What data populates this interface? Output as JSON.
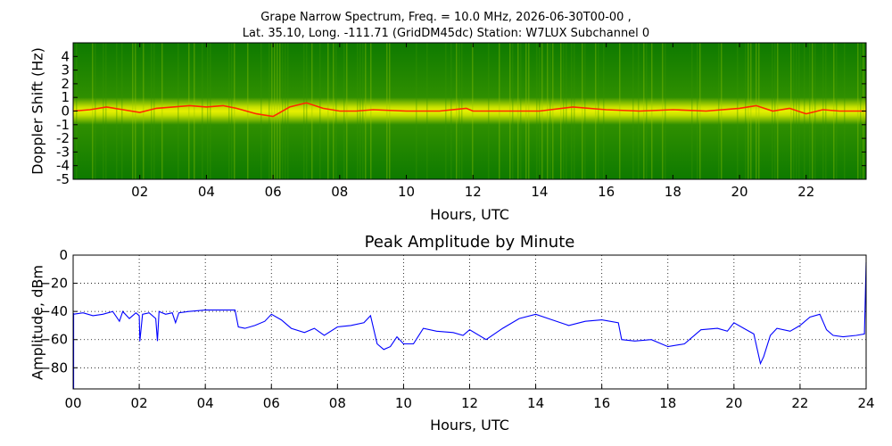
{
  "figure": {
    "title_line1": "Grape Narrow Spectrum, Freq. = 10.0 MHz, 2026-06-30T00-00 ,",
    "title_line2": "Lat.  35.10, Long. -111.71 (GridDM45dc) Station: W7LUX Subchannel 0"
  },
  "colors": {
    "spectrogram_low": "#0e7a00",
    "spectrogram_mid": "#e8f000",
    "spectrogram_peak": "#ff2a00",
    "amplitude_line": "#0000ff",
    "grid": "#000000"
  },
  "chart_data": [
    {
      "type": "heatmap",
      "title": "",
      "xlabel": "Hours, UTC",
      "ylabel": "Doppler Shift (Hz)",
      "xlim": [
        0,
        23.8
      ],
      "ylim": [
        -5,
        5
      ],
      "x_ticks": [
        2,
        4,
        6,
        8,
        10,
        12,
        14,
        16,
        18,
        20,
        22
      ],
      "x_tick_labels": [
        "02",
        "04",
        "06",
        "08",
        "10",
        "12",
        "14",
        "16",
        "18",
        "20",
        "22"
      ],
      "y_ticks": [
        -5,
        -4,
        -3,
        -2,
        -1,
        0,
        1,
        2,
        3,
        4
      ],
      "y_tick_labels": [
        "-5",
        "-4",
        "-3",
        "-2",
        "-1",
        "0",
        "1",
        "2",
        "3",
        "4"
      ],
      "peak_doppler_trace": {
        "x": [
          0,
          0.5,
          1,
          1.5,
          2,
          2.5,
          3,
          3.5,
          4,
          4.5,
          4.9,
          5.5,
          6,
          6.5,
          7,
          7.5,
          8,
          8.5,
          9,
          10,
          11,
          11.8,
          12,
          13,
          14,
          15,
          16,
          17,
          18,
          19,
          20,
          20.5,
          21,
          21.5,
          22,
          22.5,
          23,
          23.8
        ],
        "y": [
          0,
          0.1,
          0.3,
          0.1,
          -0.1,
          0.2,
          0.3,
          0.4,
          0.3,
          0.4,
          0.2,
          -0.2,
          -0.4,
          0.3,
          0.6,
          0.2,
          0,
          0,
          0.1,
          0,
          0,
          0.2,
          0,
          0,
          0,
          0.3,
          0.1,
          0,
          0.1,
          0,
          0.2,
          0.4,
          0,
          0.2,
          -0.2,
          0.1,
          0,
          0
        ]
      }
    },
    {
      "type": "line",
      "title": "Peak Amplitude by Minute",
      "xlabel": "Hours, UTC",
      "ylabel": "Amplitude, dBm",
      "xlim": [
        0,
        24
      ],
      "ylim": [
        -95,
        0
      ],
      "x_ticks": [
        0,
        2,
        4,
        6,
        8,
        10,
        12,
        14,
        16,
        18,
        20,
        22,
        24
      ],
      "x_tick_labels": [
        "00",
        "02",
        "04",
        "06",
        "08",
        "10",
        "12",
        "14",
        "16",
        "18",
        "20",
        "22",
        "24"
      ],
      "y_ticks": [
        0,
        -20,
        -40,
        -60,
        -80
      ],
      "y_tick_labels": [
        "0",
        "−20",
        "−40",
        "−60",
        "−80"
      ],
      "grid": true,
      "series": [
        {
          "x": [
            0,
            0.3,
            0.6,
            0.9,
            1.2,
            1.4,
            1.5,
            1.7,
            1.9,
            2.0,
            2.02,
            2.1,
            2.3,
            2.5,
            2.55,
            2.6,
            2.8,
            3.0,
            3.1,
            3.2,
            3.5,
            4.0,
            4.5,
            4.9,
            5.0,
            5.2,
            5.5,
            5.8,
            6.0,
            6.3,
            6.6,
            7.0,
            7.3,
            7.6,
            8.0,
            8.4,
            8.8,
            9.0,
            9.2,
            9.4,
            9.6,
            9.8,
            10.0,
            10.3,
            10.6,
            11.0,
            11.5,
            11.8,
            12.0,
            12.5,
            13.0,
            13.5,
            14.0,
            14.5,
            15.0,
            15.5,
            16.0,
            16.5,
            16.6,
            17.0,
            17.5,
            18.0,
            18.5,
            19.0,
            19.5,
            19.8,
            20.0,
            20.3,
            20.6,
            20.8,
            20.9,
            21.1,
            21.3,
            21.7,
            22.0,
            22.3,
            22.6,
            22.8,
            23.0,
            23.3,
            23.7,
            23.95,
            24.0
          ],
          "y": [
            -42,
            -41,
            -43,
            -42,
            -40,
            -47,
            -40,
            -45,
            -41,
            -43,
            -61,
            -42,
            -41,
            -45,
            -61,
            -40,
            -42,
            -41,
            -48,
            -41,
            -40,
            -39,
            -39,
            -39,
            -51,
            -52,
            -50,
            -47,
            -42,
            -46,
            -52,
            -55,
            -52,
            -57,
            -51,
            -50,
            -48,
            -43,
            -63,
            -67,
            -65,
            -58,
            -63,
            -63,
            -52,
            -54,
            -55,
            -57,
            -53,
            -60,
            -52,
            -45,
            -42,
            -46,
            -50,
            -47,
            -46,
            -48,
            -60,
            -61,
            -60,
            -65,
            -63,
            -53,
            -52,
            -54,
            -48,
            -52,
            -56,
            -77,
            -72,
            -57,
            -52,
            -54,
            -50,
            -44,
            -42,
            -53,
            -57,
            -58,
            -57,
            -56,
            -5
          ]
        }
      ]
    }
  ]
}
